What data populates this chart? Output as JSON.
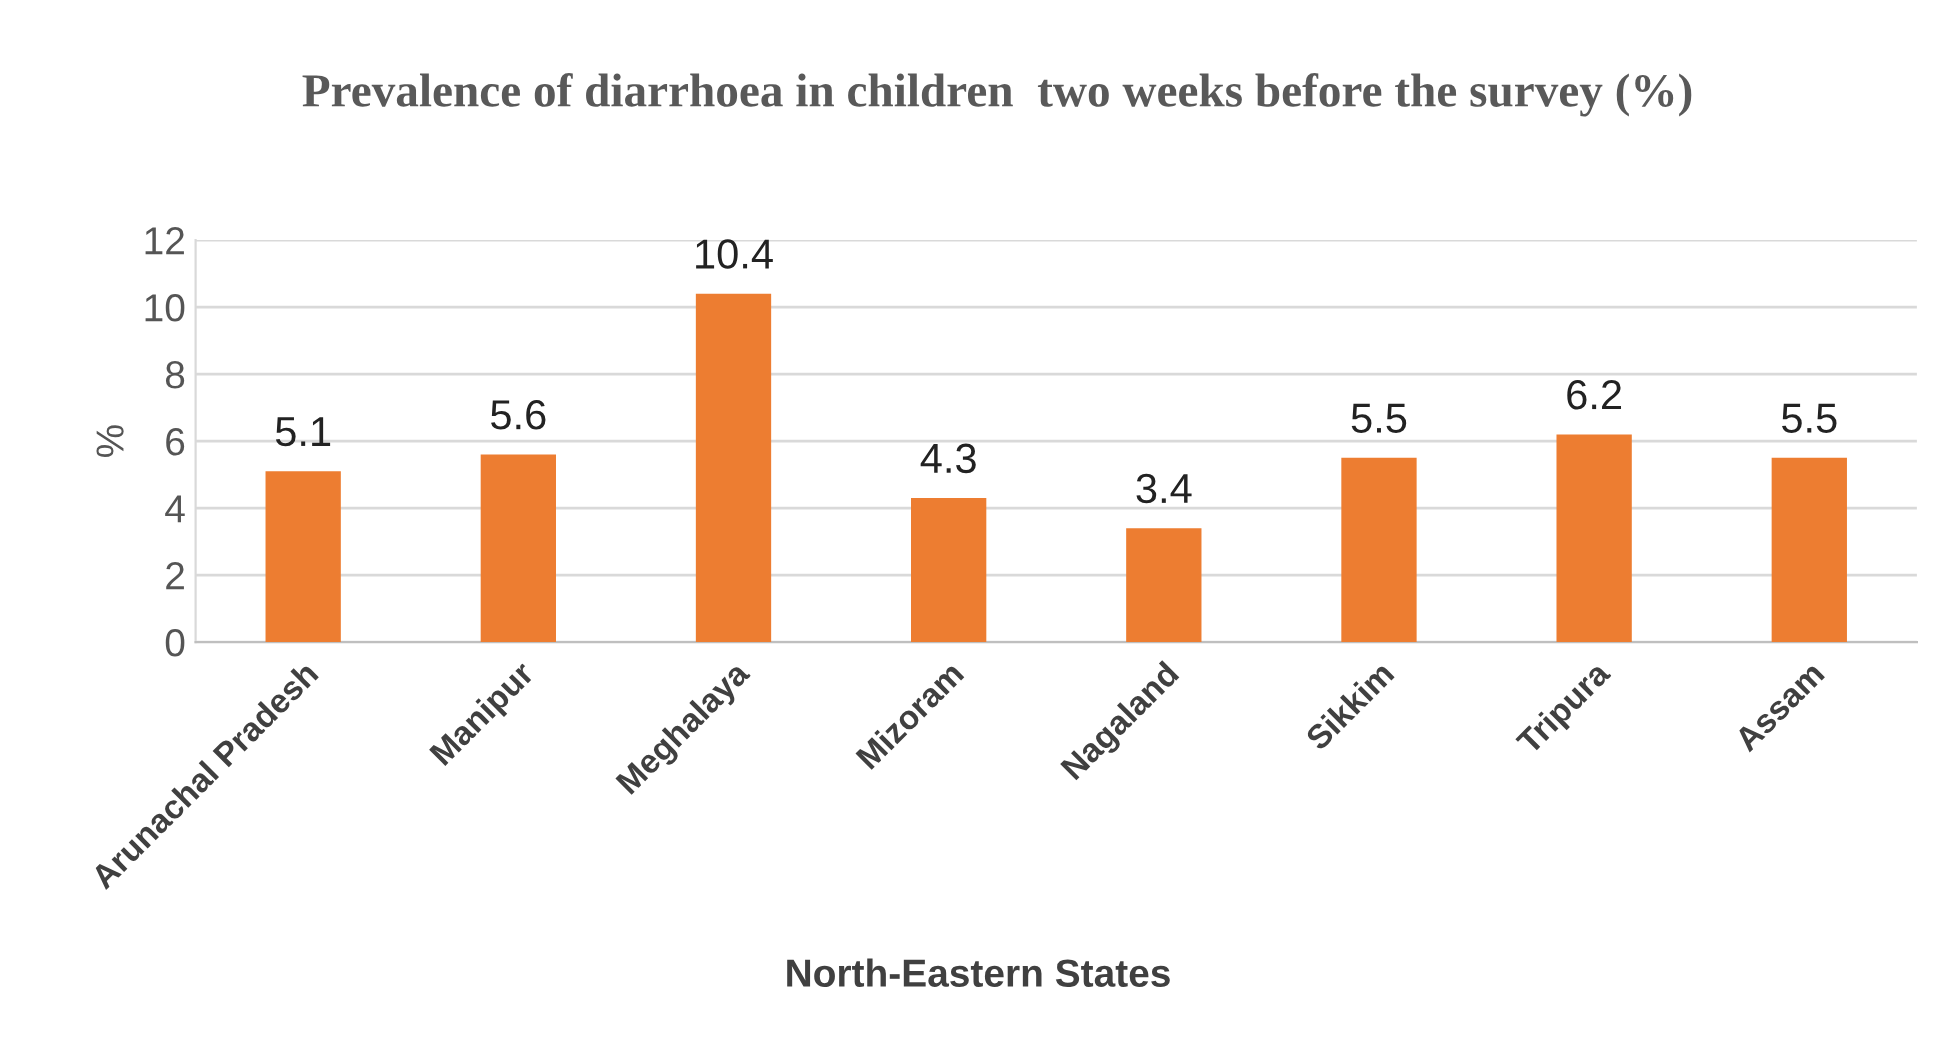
{
  "chart_data": {
    "type": "bar",
    "title": "Prevalence of diarrhoea in children  two weeks before the survey (%)",
    "xlabel": "North-Eastern States",
    "ylabel": "%",
    "categories": [
      "Arunachal Pradesh",
      "Manipur",
      "Meghalaya",
      "Mizoram",
      "Nagaland",
      "Sikkim",
      "Tripura",
      "Assam"
    ],
    "values": [
      5.1,
      5.6,
      10.4,
      4.3,
      3.4,
      5.5,
      6.2,
      5.5
    ],
    "color": "#ed7d31",
    "ylim": [
      0,
      12
    ],
    "yticks": [
      0,
      2,
      4,
      6,
      8,
      10,
      12
    ],
    "grid": "y",
    "data_labels": true
  }
}
